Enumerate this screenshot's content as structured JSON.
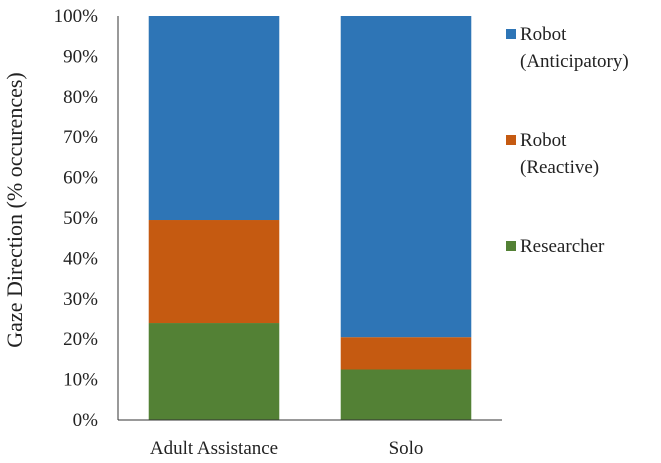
{
  "chart_data": {
    "type": "bar",
    "stacked": true,
    "categories": [
      "Adult Assistance",
      "Solo"
    ],
    "series": [
      {
        "name": "Researcher",
        "color": "#538135",
        "values": [
          24,
          12.5
        ]
      },
      {
        "name": "Robot (Reactive)",
        "color": "#c55a11",
        "values": [
          25.5,
          8
        ]
      },
      {
        "name": "Robot (Anticipatory)",
        "color": "#2e75b6",
        "values": [
          50.5,
          79.5
        ]
      }
    ],
    "legend": [
      {
        "lines": [
          "Robot",
          "(Anticipatory)"
        ],
        "color": "#2e75b6"
      },
      {
        "lines": [
          "Robot",
          "(Reactive)"
        ],
        "color": "#c55a11"
      },
      {
        "lines": [
          "Researcher"
        ],
        "color": "#538135"
      }
    ],
    "ylabel": "Gaze Direction (% occurences)",
    "ylim": [
      0,
      100
    ],
    "yticks": [
      "0%",
      "10%",
      "20%",
      "30%",
      "40%",
      "50%",
      "60%",
      "70%",
      "80%",
      "90%",
      "100%"
    ],
    "grid": false,
    "legend_position": "right"
  }
}
